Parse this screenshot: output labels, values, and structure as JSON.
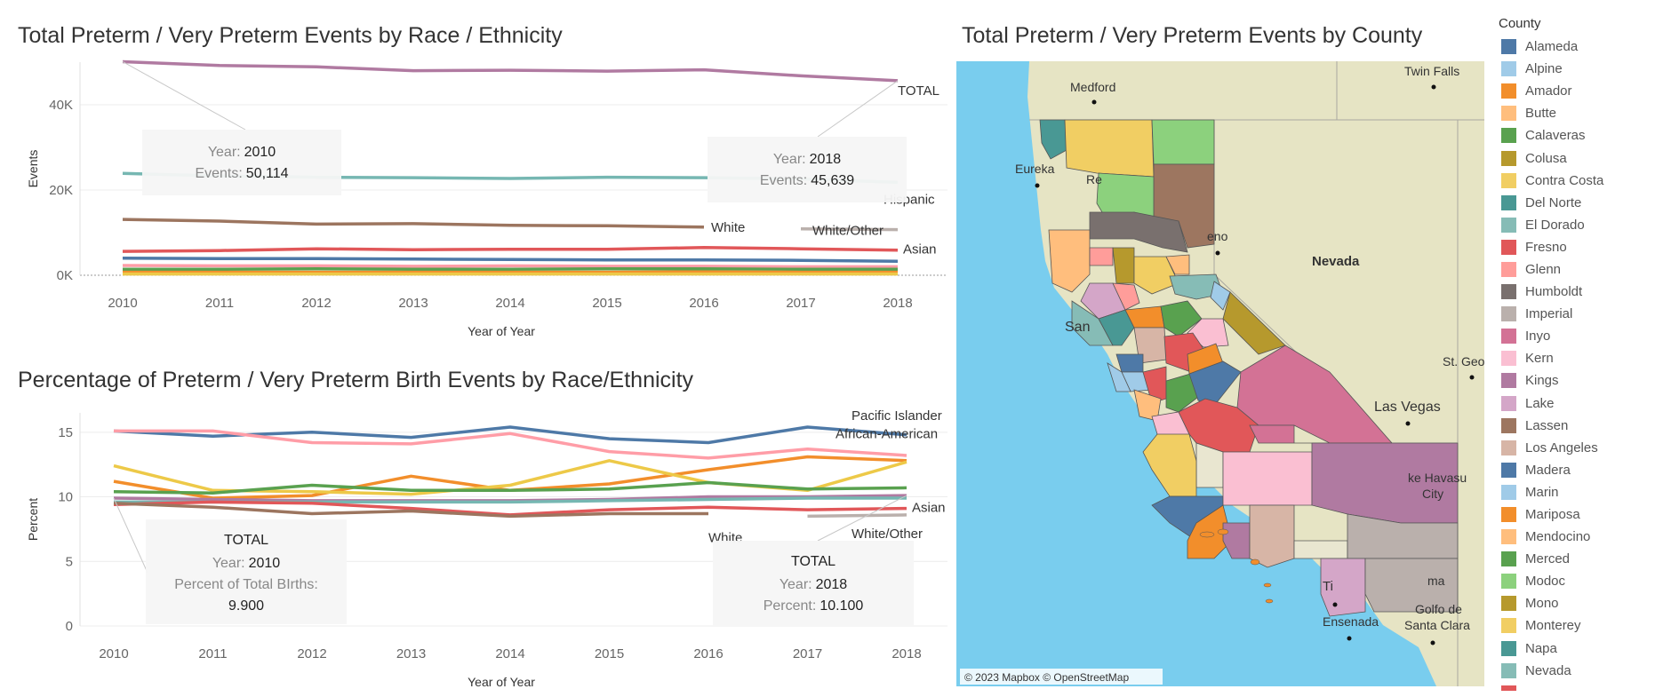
{
  "charts": {
    "events": {
      "title": "Total Preterm / Very Preterm Events by Race / Ethnicity",
      "xlabel": "Year of Year",
      "ylabel": "Events",
      "ticks": [
        "0K",
        "20K",
        "40K"
      ],
      "tooltips": [
        {
          "k1": "Year:",
          "v1": "2010",
          "k2": "Events:",
          "v2": "50,114"
        },
        {
          "k1": "Year:",
          "v1": "2018",
          "k2": "Events:",
          "v2": "45,639"
        }
      ]
    },
    "percent": {
      "title": "Percentage of Preterm / Very Preterm Birth Events by Race/Ethnicity",
      "xlabel": "Year of Year",
      "ylabel": "Percent",
      "ticks": [
        "0",
        "5",
        "10",
        "15"
      ],
      "tooltips": [
        {
          "head": "TOTAL",
          "k1": "Year:",
          "v1": "2010",
          "k2": "Percent of Total BIrths:",
          "v2": "9.900"
        },
        {
          "head": "TOTAL",
          "k1": "Year:",
          "v1": "2018",
          "k2": "Percent:",
          "v2": "10.100"
        }
      ]
    },
    "map": {
      "title": "Total Preterm / Very Preterm Events by County",
      "attribution": "© 2023 Mapbox © OpenStreetMap",
      "places": [
        {
          "name": "Medford"
        },
        {
          "name": "Twin Falls"
        },
        {
          "name": "Eureka"
        },
        {
          "name": "Re"
        },
        {
          "name": "eno"
        },
        {
          "name": "Nevada"
        },
        {
          "name": "St. Geor"
        },
        {
          "name": "Las Vegas"
        },
        {
          "name": "San"
        },
        {
          "name": "ke Havasu"
        },
        {
          "name": "City"
        },
        {
          "name": "Ti"
        },
        {
          "name": "ma"
        },
        {
          "name": "Ensenada"
        },
        {
          "name": "Golfo de"
        },
        {
          "name": "Santa Clara"
        }
      ]
    }
  },
  "chart_data": [
    {
      "type": "line",
      "title": "Total Preterm / Very Preterm Events by Race / Ethnicity",
      "xlabel": "Year of Year",
      "ylabel": "Events",
      "x": [
        2010,
        2011,
        2012,
        2013,
        2014,
        2015,
        2016,
        2017,
        2018
      ],
      "ylim": [
        0,
        50000
      ],
      "grid": true,
      "series": [
        {
          "name": "TOTAL",
          "color": "#b07aa1",
          "values": [
            50114,
            49200,
            48900,
            48000,
            48100,
            47900,
            48200,
            46800,
            45639
          ]
        },
        {
          "name": "Hispanic",
          "color": "#76b7b2",
          "values": [
            23900,
            23300,
            23000,
            22900,
            22700,
            23000,
            22900,
            22600,
            21800
          ]
        },
        {
          "name": "White",
          "color": "#9c755f",
          "values": [
            13100,
            12700,
            12000,
            12100,
            11700,
            11600,
            11300,
            null,
            null
          ]
        },
        {
          "name": "White/Other",
          "color": "#bab0ac",
          "values": [
            null,
            null,
            null,
            null,
            null,
            null,
            null,
            10900,
            10700
          ]
        },
        {
          "name": "Asian",
          "color": "#e15759",
          "values": [
            5600,
            5800,
            6200,
            6000,
            6100,
            6100,
            6500,
            6200,
            5900
          ]
        },
        {
          "name": "",
          "color": "#4e79a7",
          "values": [
            4000,
            3900,
            3900,
            3800,
            3700,
            3600,
            3600,
            3500,
            3300
          ]
        },
        {
          "name": "",
          "color": "#ff9da7",
          "values": [
            2300,
            2200,
            2200,
            2100,
            2200,
            2100,
            2100,
            2000,
            2000
          ]
        },
        {
          "name": "",
          "color": "#59a14f",
          "values": [
            1400,
            1400,
            1500,
            1400,
            1400,
            1500,
            1500,
            1400,
            1400
          ]
        },
        {
          "name": "",
          "color": "#f28e2b",
          "values": [
            700,
            700,
            700,
            700,
            700,
            700,
            800,
            700,
            700
          ]
        },
        {
          "name": "",
          "color": "#edc948",
          "values": [
            300,
            300,
            300,
            300,
            300,
            300,
            300,
            300,
            300
          ]
        }
      ],
      "labels": [
        "TOTAL",
        "Hispanic",
        "White",
        "White/Other",
        "Asian"
      ]
    },
    {
      "type": "line",
      "title": "Percentage of Preterm / Very Preterm Birth Events by Race/Ethnicity",
      "xlabel": "Year of Year",
      "ylabel": "Percent",
      "x": [
        2010,
        2011,
        2012,
        2013,
        2014,
        2015,
        2016,
        2017,
        2018
      ],
      "ylim": [
        0,
        16.5
      ],
      "grid": true,
      "series": [
        {
          "name": "African-American",
          "color": "#4e79a7",
          "values": [
            15.1,
            14.7,
            15.0,
            14.6,
            15.4,
            14.5,
            14.2,
            15.4,
            14.8
          ]
        },
        {
          "name": "",
          "color": "#ff9da7",
          "values": [
            15.1,
            15.1,
            14.2,
            14.1,
            14.9,
            13.5,
            13.0,
            13.7,
            13.2
          ]
        },
        {
          "name": "Pacific Islander",
          "color": "#f28e2b",
          "values": [
            11.2,
            9.9,
            10.1,
            11.6,
            10.5,
            11.0,
            12.1,
            13.1,
            12.8
          ]
        },
        {
          "name": "",
          "color": "#edc948",
          "values": [
            12.4,
            10.5,
            10.4,
            10.2,
            10.9,
            12.8,
            11.1,
            10.5,
            12.7
          ]
        },
        {
          "name": "",
          "color": "#59a14f",
          "values": [
            10.4,
            10.3,
            10.9,
            10.5,
            10.5,
            10.6,
            11.1,
            10.6,
            10.7
          ]
        },
        {
          "name": "",
          "color": "#b07aa1",
          "values": [
            9.9,
            9.8,
            9.7,
            9.7,
            9.7,
            9.8,
            10.0,
            10.0,
            10.1
          ]
        },
        {
          "name": "",
          "color": "#76b7b2",
          "values": [
            9.6,
            9.6,
            9.6,
            9.6,
            9.6,
            9.7,
            9.8,
            9.9,
            9.9
          ]
        },
        {
          "name": "Asian",
          "color": "#e15759",
          "values": [
            9.4,
            9.6,
            9.5,
            9.1,
            8.6,
            9.0,
            9.2,
            9.0,
            9.1
          ]
        },
        {
          "name": "White",
          "color": "#9c755f",
          "values": [
            9.5,
            9.2,
            8.7,
            8.9,
            8.5,
            8.7,
            8.7,
            null,
            null
          ]
        },
        {
          "name": "White/Other",
          "color": "#bab0ac",
          "values": [
            null,
            null,
            null,
            null,
            null,
            null,
            null,
            8.5,
            8.6
          ]
        }
      ],
      "labels": [
        "African-American",
        "Pacific Islander",
        "Asian",
        "White",
        "White/Other"
      ]
    }
  ],
  "legend": {
    "title": "County",
    "items": [
      {
        "label": "Alameda",
        "color": "#4e79a7"
      },
      {
        "label": "Alpine",
        "color": "#a0cbe8"
      },
      {
        "label": "Amador",
        "color": "#f28e2b"
      },
      {
        "label": "Butte",
        "color": "#ffbe7d"
      },
      {
        "label": "Calaveras",
        "color": "#59a14f"
      },
      {
        "label": "Colusa",
        "color": "#b6992d"
      },
      {
        "label": "Contra Costa",
        "color": "#f1ce63"
      },
      {
        "label": "Del Norte",
        "color": "#499894"
      },
      {
        "label": "El Dorado",
        "color": "#86bcb6"
      },
      {
        "label": "Fresno",
        "color": "#e15759"
      },
      {
        "label": "Glenn",
        "color": "#ff9d9a"
      },
      {
        "label": "Humboldt",
        "color": "#79706e"
      },
      {
        "label": "Imperial",
        "color": "#bab0ac"
      },
      {
        "label": "Inyo",
        "color": "#d37295"
      },
      {
        "label": "Kern",
        "color": "#fabfd2"
      },
      {
        "label": "Kings",
        "color": "#b07aa1"
      },
      {
        "label": "Lake",
        "color": "#d4a6c8"
      },
      {
        "label": "Lassen",
        "color": "#9d7660"
      },
      {
        "label": "Los Angeles",
        "color": "#d7b5a6"
      },
      {
        "label": "Madera",
        "color": "#4e79a7"
      },
      {
        "label": "Marin",
        "color": "#a0cbe8"
      },
      {
        "label": "Mariposa",
        "color": "#f28e2b"
      },
      {
        "label": "Mendocino",
        "color": "#ffbe7d"
      },
      {
        "label": "Merced",
        "color": "#59a14f"
      },
      {
        "label": "Modoc",
        "color": "#8cd17d"
      },
      {
        "label": "Mono",
        "color": "#b6992d"
      },
      {
        "label": "Monterey",
        "color": "#f1ce63"
      },
      {
        "label": "Napa",
        "color": "#499894"
      },
      {
        "label": "Nevada",
        "color": "#86bcb6"
      },
      {
        "label": "",
        "color": "#e15759"
      }
    ]
  }
}
